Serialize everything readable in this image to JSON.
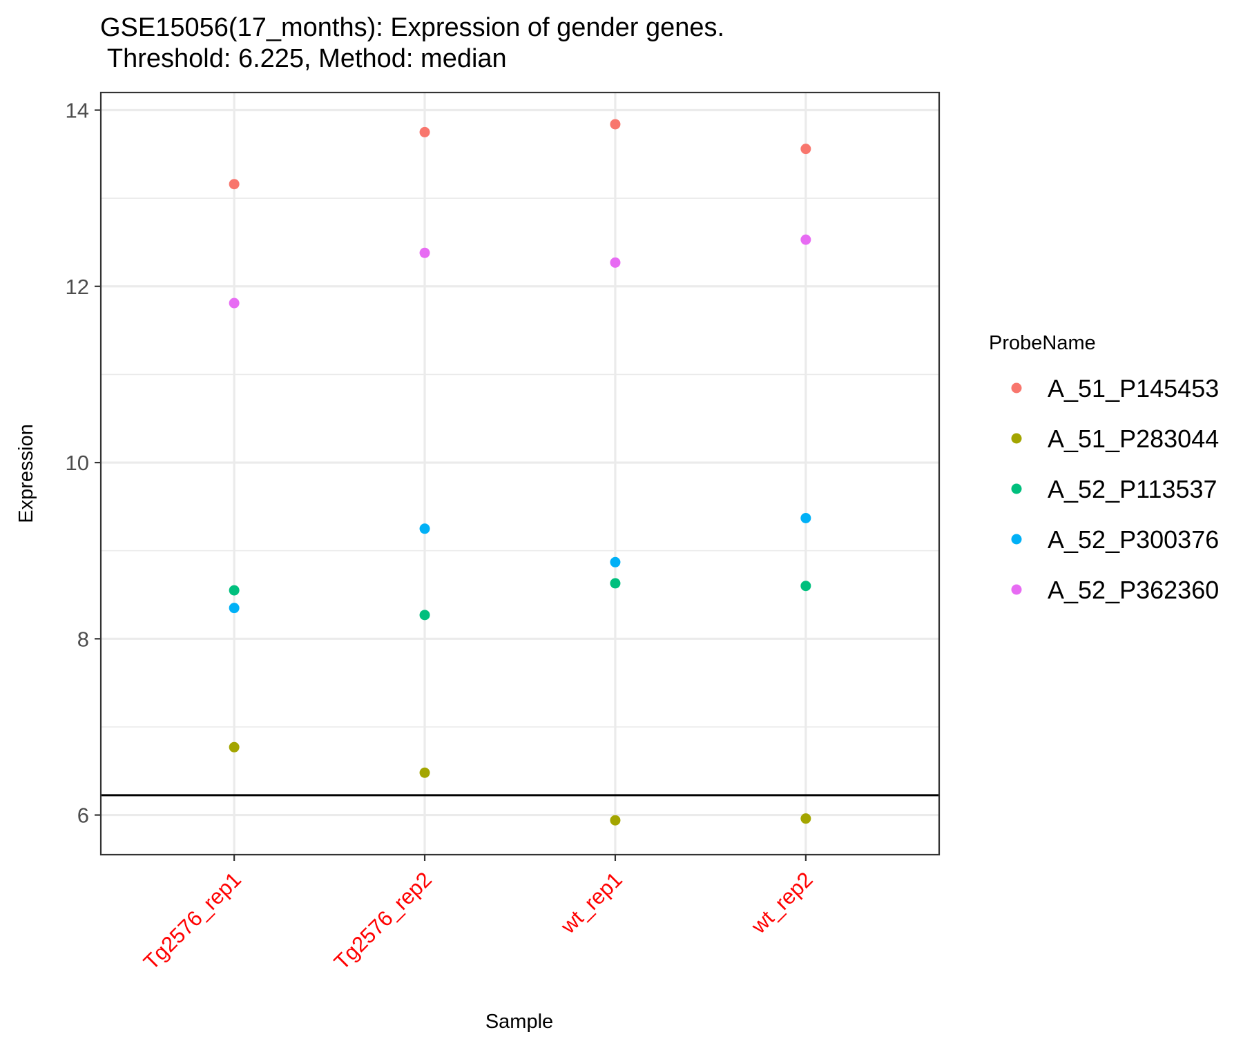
{
  "chart_data": {
    "type": "scatter",
    "title": "GSE15056(17_months): Expression of gender genes.",
    "subtitle": " Threshold: 6.225, Method: median",
    "xlabel": "Sample",
    "ylabel": "Expression",
    "categories": [
      "Tg2576_rep1",
      "Tg2576_rep2",
      "wt_rep1",
      "wt_rep2"
    ],
    "category_label_color": "#ff0000",
    "ylim": [
      5.55,
      14.2
    ],
    "y_ticks": [
      "6",
      "8",
      "10",
      "12",
      "14"
    ],
    "y_tick_values": [
      6,
      8,
      10,
      12,
      14
    ],
    "y_minor_ticks": [
      7,
      9,
      11,
      13
    ],
    "threshold": 6.225,
    "grid": true,
    "legend_title": "ProbeName",
    "legend_position": "right",
    "series": [
      {
        "name": "A_51_P145453",
        "color": "#F8766D",
        "values": [
          13.16,
          13.75,
          13.84,
          13.56
        ]
      },
      {
        "name": "A_51_P283044",
        "color": "#A3A500",
        "values": [
          6.77,
          6.48,
          5.94,
          5.96
        ]
      },
      {
        "name": "A_52_P113537",
        "color": "#00BF7D",
        "values": [
          8.55,
          8.27,
          8.63,
          8.6
        ]
      },
      {
        "name": "A_52_P300376",
        "color": "#00B0F6",
        "values": [
          8.35,
          9.25,
          8.87,
          9.37
        ]
      },
      {
        "name": "A_52_P362360",
        "color": "#E76BF3",
        "values": [
          11.81,
          12.38,
          12.27,
          12.53
        ]
      }
    ]
  }
}
